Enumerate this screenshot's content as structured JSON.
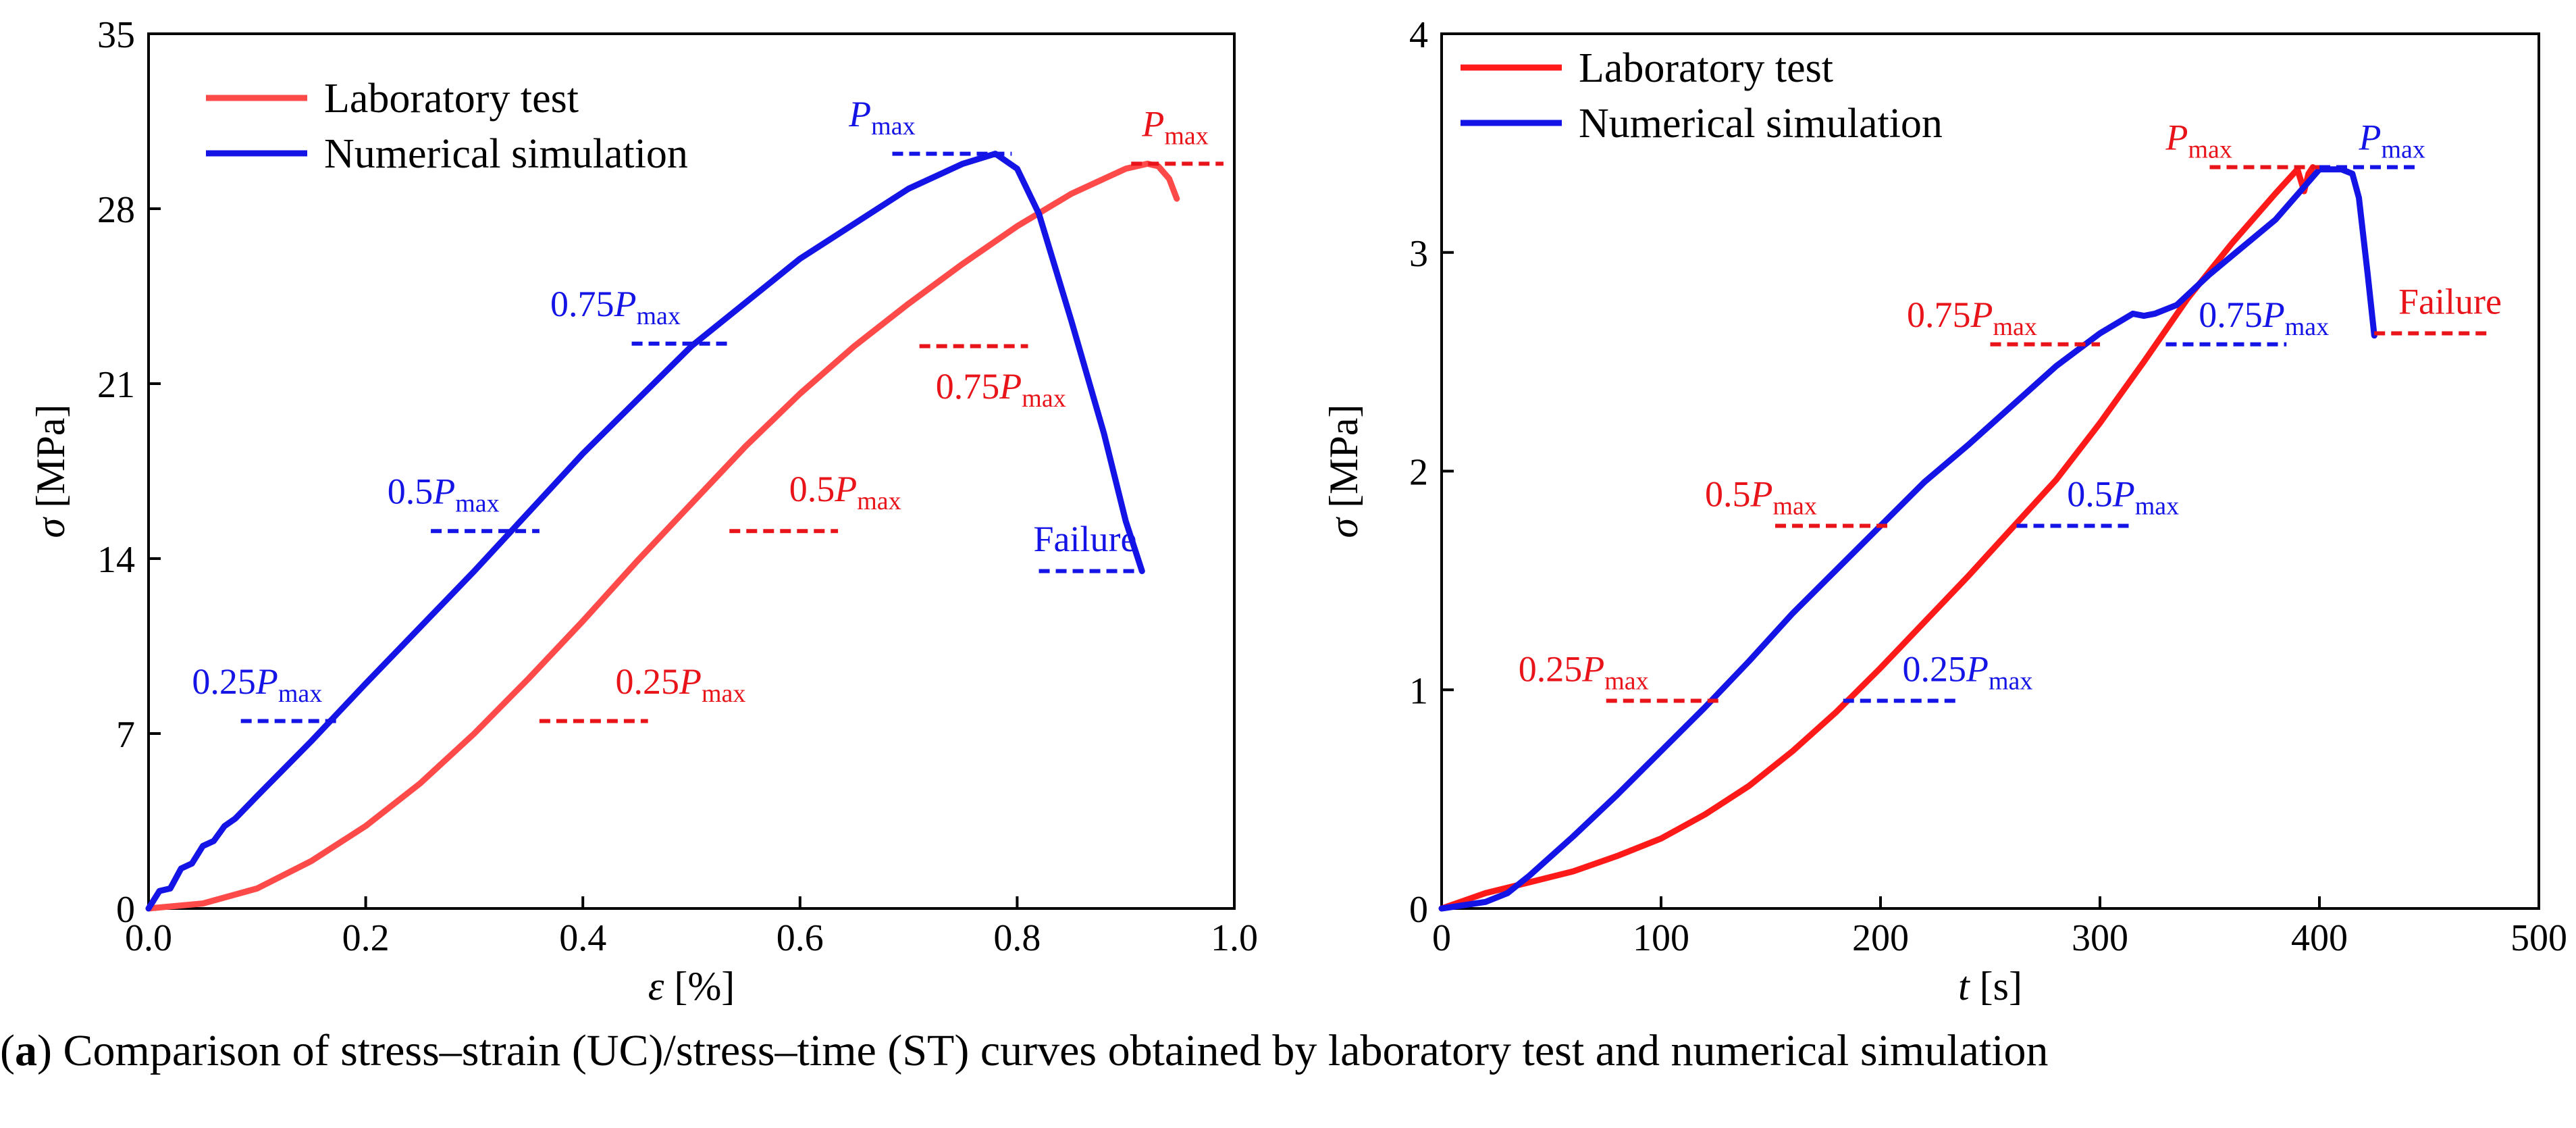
{
  "figure": {
    "caption_label": "a",
    "caption_text": "Comparison of stress–strain (UC)/stress–time (ST) curves obtained by laboratory test and numerical simulation"
  },
  "colors": {
    "lab": "#ff3b3b",
    "lab_dark": "#e8141a",
    "sim": "#1414e6",
    "axis": "#000000"
  },
  "chart_data": [
    {
      "type": "line",
      "panel": "left",
      "xlabel": {
        "symbol": "ε",
        "unit": " [%]"
      },
      "ylabel": {
        "symbol": "σ",
        "unit": " [MPa]"
      },
      "xlim": [
        0,
        1.0
      ],
      "ylim": [
        0,
        35
      ],
      "xticks": [
        "0.0",
        "0.2",
        "0.4",
        "0.6",
        "0.8",
        "1.0"
      ],
      "yticks": [
        "0",
        "7",
        "14",
        "21",
        "28",
        "35"
      ],
      "xtick_values": [
        0,
        0.2,
        0.4,
        0.6,
        0.8,
        1.0
      ],
      "ytick_values": [
        0,
        7,
        14,
        21,
        28,
        35
      ],
      "legend": [
        "Laboratory test",
        "Numerical simulation"
      ],
      "series": [
        {
          "name": "Laboratory test",
          "color": "#ff4a4a",
          "x": [
            0,
            0.05,
            0.1,
            0.15,
            0.2,
            0.25,
            0.3,
            0.35,
            0.4,
            0.45,
            0.5,
            0.55,
            0.6,
            0.65,
            0.7,
            0.75,
            0.8,
            0.85,
            0.9,
            0.92,
            0.93,
            0.94,
            0.947
          ],
          "y": [
            0,
            0.2,
            0.8,
            1.9,
            3.3,
            5.0,
            7.0,
            9.2,
            11.5,
            13.9,
            16.2,
            18.5,
            20.6,
            22.5,
            24.2,
            25.8,
            27.3,
            28.6,
            29.6,
            29.8,
            29.7,
            29.2,
            28.4
          ]
        },
        {
          "name": "Numerical simulation",
          "color": "#1414e6",
          "x": [
            0,
            0.01,
            0.02,
            0.03,
            0.04,
            0.05,
            0.06,
            0.07,
            0.08,
            0.1,
            0.15,
            0.2,
            0.3,
            0.4,
            0.5,
            0.6,
            0.7,
            0.75,
            0.78,
            0.8,
            0.82,
            0.85,
            0.88,
            0.9,
            0.915
          ],
          "y": [
            0,
            0.7,
            0.8,
            1.6,
            1.8,
            2.5,
            2.7,
            3.3,
            3.6,
            4.5,
            6.7,
            9.0,
            13.5,
            18.2,
            22.5,
            26.0,
            28.8,
            29.8,
            30.2,
            29.6,
            27.8,
            23.5,
            19.0,
            15.5,
            13.5
          ]
        }
      ],
      "annotations": [
        {
          "text": "P",
          "sub": "max",
          "color": "#1414e6",
          "y": 30.2,
          "x0": 0.685,
          "x1": 0.795,
          "lx": 0.645,
          "ly": 31.3
        },
        {
          "text": "P",
          "sub": "max",
          "color": "#e8141a",
          "y": 29.8,
          "x0": 0.905,
          "x1": 0.99,
          "lx": 0.915,
          "ly": 30.9
        },
        {
          "text": "0.75P",
          "sub": "max",
          "color": "#1414e6",
          "y": 22.6,
          "x0": 0.445,
          "x1": 0.535,
          "lx": 0.37,
          "ly": 23.7
        },
        {
          "text": "0.75P",
          "sub": "max",
          "color": "#e8141a",
          "y": 22.5,
          "x0": 0.71,
          "x1": 0.81,
          "lx": 0.725,
          "ly": 20.4
        },
        {
          "text": "0.5P",
          "sub": "max",
          "color": "#1414e6",
          "y": 15.1,
          "x0": 0.26,
          "x1": 0.36,
          "lx": 0.22,
          "ly": 16.2
        },
        {
          "text": "0.5P",
          "sub": "max",
          "color": "#e8141a",
          "y": 15.1,
          "x0": 0.535,
          "x1": 0.635,
          "lx": 0.59,
          "ly": 16.3
        },
        {
          "text": "Failure",
          "sub": "",
          "color": "#1414e6",
          "y": 13.5,
          "x0": 0.82,
          "x1": 0.915,
          "lx": 0.815,
          "ly": 14.3
        },
        {
          "text": "0.25P",
          "sub": "max",
          "color": "#1414e6",
          "y": 7.5,
          "x0": 0.085,
          "x1": 0.175,
          "lx": 0.04,
          "ly": 8.6
        },
        {
          "text": "0.25P",
          "sub": "max",
          "color": "#e8141a",
          "y": 7.5,
          "x0": 0.36,
          "x1": 0.46,
          "lx": 0.43,
          "ly": 8.6
        }
      ]
    },
    {
      "type": "line",
      "panel": "right",
      "xlabel": {
        "symbol": "t",
        "unit": " [s]"
      },
      "ylabel": {
        "symbol": "σ",
        "unit": " [MPa]"
      },
      "xlim": [
        0,
        500
      ],
      "ylim": [
        0,
        4
      ],
      "xticks": [
        "0",
        "100",
        "200",
        "300",
        "400",
        "500"
      ],
      "yticks": [
        "0",
        "1",
        "2",
        "3",
        "4"
      ],
      "xtick_values": [
        0,
        100,
        200,
        300,
        400,
        500
      ],
      "ytick_values": [
        0,
        1,
        2,
        3,
        4
      ],
      "legend": [
        "Laboratory test",
        "Numerical simulation"
      ],
      "series": [
        {
          "name": "Laboratory test",
          "color": "#ff1a1a",
          "x": [
            0,
            20,
            40,
            60,
            80,
            100,
            120,
            140,
            160,
            180,
            200,
            220,
            240,
            260,
            280,
            300,
            320,
            340,
            360,
            380,
            390,
            393,
            395,
            397
          ],
          "y": [
            0,
            0.07,
            0.12,
            0.17,
            0.24,
            0.32,
            0.43,
            0.56,
            0.72,
            0.9,
            1.1,
            1.31,
            1.52,
            1.74,
            1.96,
            2.22,
            2.5,
            2.79,
            3.04,
            3.27,
            3.38,
            3.28,
            3.36,
            3.39
          ]
        },
        {
          "name": "Numerical simulation",
          "color": "#1414e6",
          "x": [
            0,
            20,
            30,
            40,
            60,
            80,
            100,
            120,
            140,
            160,
            180,
            200,
            220,
            240,
            260,
            280,
            300,
            315,
            320,
            325,
            335,
            350,
            380,
            400,
            410,
            415,
            418,
            422,
            425
          ],
          "y": [
            0,
            0.03,
            0.07,
            0.15,
            0.33,
            0.52,
            0.72,
            0.92,
            1.13,
            1.35,
            1.55,
            1.75,
            1.95,
            2.12,
            2.3,
            2.48,
            2.63,
            2.72,
            2.71,
            2.72,
            2.76,
            2.9,
            3.15,
            3.38,
            3.38,
            3.36,
            3.25,
            2.9,
            2.62
          ]
        }
      ],
      "annotations": [
        {
          "text": "P",
          "sub": "max",
          "color": "#e8141a",
          "y": 3.39,
          "x0": 350,
          "x1": 400,
          "lx": 330,
          "ly": 3.47
        },
        {
          "text": "P",
          "sub": "max",
          "color": "#1414e6",
          "y": 3.39,
          "x0": 400,
          "x1": 445,
          "lx": 418,
          "ly": 3.47
        },
        {
          "text": "0.75P",
          "sub": "max",
          "color": "#e8141a",
          "y": 2.58,
          "x0": 250,
          "x1": 300,
          "lx": 212,
          "ly": 2.66
        },
        {
          "text": "0.75P",
          "sub": "max",
          "color": "#1414e6",
          "y": 2.58,
          "x0": 330,
          "x1": 385,
          "lx": 345,
          "ly": 2.66
        },
        {
          "text": "Failure",
          "sub": "",
          "color": "#e8141a",
          "y": 2.63,
          "x0": 425,
          "x1": 478,
          "lx": 436,
          "ly": 2.72
        },
        {
          "text": "0.5P",
          "sub": "max",
          "color": "#e8141a",
          "y": 1.75,
          "x0": 152,
          "x1": 205,
          "lx": 120,
          "ly": 1.84
        },
        {
          "text": "0.5P",
          "sub": "max",
          "color": "#1414e6",
          "y": 1.75,
          "x0": 262,
          "x1": 315,
          "lx": 285,
          "ly": 1.84
        },
        {
          "text": "0.25P",
          "sub": "max",
          "color": "#e8141a",
          "y": 0.95,
          "x0": 75,
          "x1": 128,
          "lx": 35,
          "ly": 1.04
        },
        {
          "text": "0.25P",
          "sub": "max",
          "color": "#1414e6",
          "y": 0.95,
          "x0": 183,
          "x1": 235,
          "lx": 210,
          "ly": 1.04
        }
      ]
    }
  ]
}
